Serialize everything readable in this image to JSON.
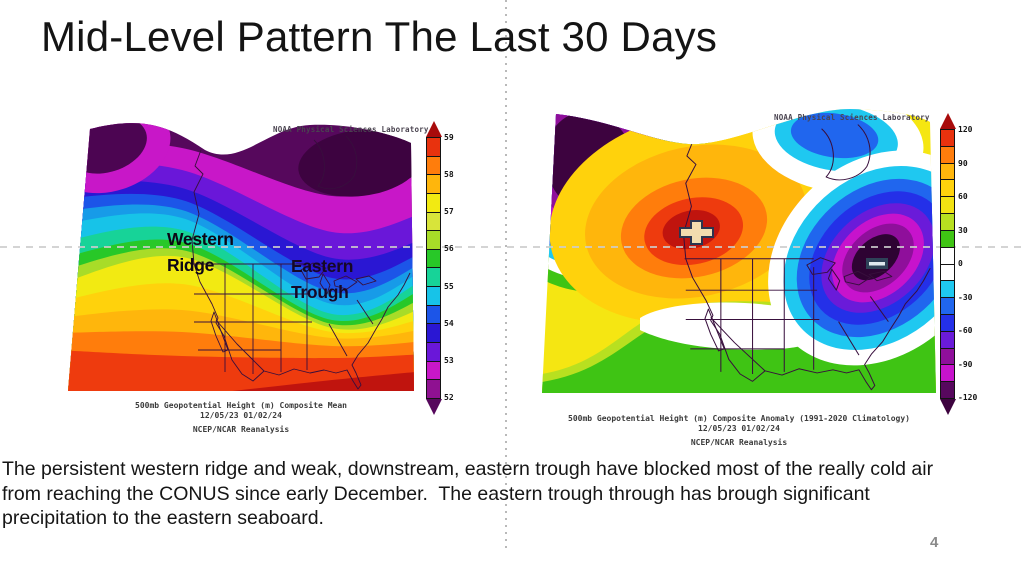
{
  "slide": {
    "title": "Mid-Level Pattern The Last 30 Days",
    "page_number": "4",
    "body_text": "The persistent western ridge and weak, downstream, eastern trough have blocked most of the really cold air from reaching the CONUS since early December.  The eastern trough through has brough significant precipitation to the eastern seaboard."
  },
  "maps": {
    "left": {
      "source_label": "NOAA Physical Sciences Laboratory",
      "caption": [
        "500mb Geopotential Height (m) Composite Mean",
        "12/05/23 01/02/24",
        "NCEP/NCAR Reanalysis"
      ],
      "annotations": {
        "ridge": "Western Ridge",
        "trough": "Eastern Trough"
      },
      "colorbar": {
        "ticks": [
          "59",
          "58",
          "57",
          "56",
          "55",
          "54",
          "53",
          "52"
        ],
        "colors": [
          "#e8320e",
          "#ff7d0c",
          "#ffb60c",
          "#f2ea12",
          "#d8e43a",
          "#a8dc28",
          "#28c828",
          "#17d398",
          "#17c3e8",
          "#1c55e8",
          "#2a17d3",
          "#6a17d9",
          "#c817c8",
          "#8f1191"
        ]
      }
    },
    "right": {
      "source_label": "NOAA Physical Sciences Laboratory",
      "caption": [
        "500mb Geopotential Height (m) Composite Anomaly (1991-2020 Climatology)",
        "12/05/23 01/02/24",
        "NCEP/NCAR Reanalysis"
      ],
      "annotations": {
        "positive_center": "+",
        "negative_center": "−"
      },
      "colorbar": {
        "ticks": [
          "120",
          "90",
          "60",
          "30",
          "0",
          "-30",
          "-60",
          "-90",
          "-120"
        ],
        "colors": [
          "#e8320e",
          "#ff7d0c",
          "#ffb60c",
          "#ffd20c",
          "#f2e212",
          "#b8e020",
          "#3fc414",
          "#ffffff",
          "#ffffff",
          "#1fc8f0",
          "#2066ee",
          "#2430e8",
          "#6a1bd9",
          "#8f0f9b",
          "#c713cc",
          "#57085e"
        ]
      }
    }
  }
}
